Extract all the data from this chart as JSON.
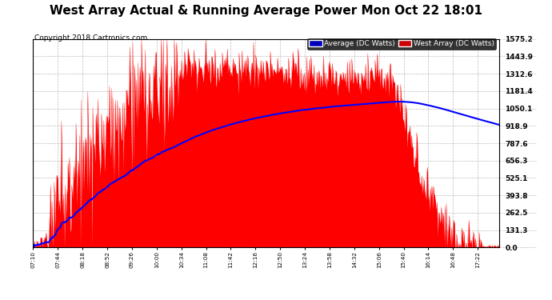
{
  "title": "West Array Actual & Running Average Power Mon Oct 22 18:01",
  "copyright": "Copyright 2018 Cartronics.com",
  "legend_labels": [
    "Average (DC Watts)",
    "West Array (DC Watts)"
  ],
  "legend_colors": [
    "#0000ff",
    "#ff0000"
  ],
  "legend_bg_avg": "#0000bb",
  "legend_bg_west": "#cc0000",
  "ymin": 0.0,
  "ymax": 1575.2,
  "yticks": [
    0.0,
    131.3,
    262.5,
    393.8,
    525.1,
    656.3,
    787.6,
    918.9,
    1050.1,
    1181.4,
    1312.6,
    1443.9,
    1575.2
  ],
  "background_color": "#ffffff",
  "grid_color": "#bbbbbb",
  "fill_color": "#ff0000",
  "avg_line_color": "#0000ff",
  "title_fontsize": 11,
  "copyright_fontsize": 6.5,
  "x_start_min": 430,
  "x_end_min": 1072,
  "num_points": 642,
  "tick_step_min": 34
}
